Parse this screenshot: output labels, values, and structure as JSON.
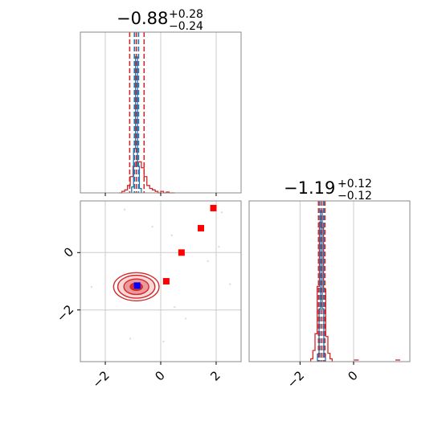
{
  "chart_data": [
    {
      "type": "histogram",
      "panel": "top-left",
      "title_value": "−0.88",
      "title_upper": "+0.28",
      "title_lower": "−0.24",
      "xlim": [
        -2.9,
        2.9
      ],
      "median": -0.88,
      "quantiles_red": [
        -1.12,
        -0.88,
        -0.6
      ],
      "quantiles_blue": [
        -0.95,
        -0.88,
        -0.8
      ],
      "grid": true,
      "colors": {
        "red": "#d62728",
        "blue": "#1f77b4",
        "grid": "#cccccc"
      },
      "hist_blue": {
        "bin_edges": [
          -1.05,
          -0.98,
          -0.91,
          -0.84,
          -0.77,
          -0.7
        ],
        "counts": [
          0.04,
          0.3,
          0.92,
          0.18,
          0.03
        ]
      },
      "hist_red": {
        "bin_edges": [
          -1.5,
          -1.4,
          -1.3,
          -1.2,
          -1.1,
          -1.0,
          -0.9,
          -0.8,
          -0.7,
          -0.6,
          -0.5,
          -0.4,
          -0.3,
          -0.2,
          -0.1,
          0.0,
          0.1,
          0.2,
          0.3,
          0.4,
          0.5
        ],
        "counts": [
          0.0,
          0.01,
          0.02,
          0.05,
          0.11,
          0.18,
          0.21,
          0.21,
          0.17,
          0.11,
          0.05,
          0.03,
          0.02,
          0.01,
          0.0,
          0.01,
          0.0,
          0.005,
          0.0,
          0.0
        ]
      }
    },
    {
      "type": "contour",
      "panel": "bottom-left",
      "xlim": [
        -2.9,
        2.9
      ],
      "ylim": [
        -3.8,
        1.8
      ],
      "x_ticks": [
        "−2",
        "0",
        "2"
      ],
      "y_ticks": [
        "−2",
        "0"
      ],
      "grid": true,
      "contour_center": [
        -0.88,
        -1.19
      ],
      "contour_levels": [
        {
          "rx": 0.22,
          "ry": 0.13,
          "fill": "#d62728",
          "opacity": 0.9
        },
        {
          "rx": 0.45,
          "ry": 0.27,
          "fill": "#e78b8c",
          "opacity": 0.8
        },
        {
          "rx": 0.67,
          "ry": 0.4,
          "fill": "#f4c9c9",
          "opacity": 0.75
        },
        {
          "rx": 0.82,
          "ry": 0.49,
          "fill": "none",
          "opacity": 1
        }
      ],
      "red_points": [
        {
          "x": 0.2,
          "y": -1.0
        },
        {
          "x": 0.75,
          "y": 0.0
        },
        {
          "x": 1.45,
          "y": 0.85
        },
        {
          "x": 1.9,
          "y": 1.55
        }
      ],
      "blue_point": {
        "x": -0.85,
        "y": -1.15
      },
      "faint_points": [
        {
          "x": -1.3,
          "y": 1.5
        },
        {
          "x": 2.2,
          "y": 1.4
        },
        {
          "x": 0.4,
          "y": 0.6
        },
        {
          "x": -2.5,
          "y": -1.2
        },
        {
          "x": 2.5,
          "y": -1.1
        },
        {
          "x": 0.9,
          "y": -2.3
        },
        {
          "x": 0.1,
          "y": -3.1
        },
        {
          "x": -1.1,
          "y": -3.0
        },
        {
          "x": 1.7,
          "y": -0.3
        },
        {
          "x": -0.3,
          "y": 0.9
        },
        {
          "x": 0.5,
          "y": -1.9
        },
        {
          "x": 2.1,
          "y": 0.2
        }
      ]
    },
    {
      "type": "histogram",
      "panel": "bottom-right",
      "title_value": "−1.19",
      "title_upper": "+0.12",
      "title_lower": "−0.12",
      "xlim": [
        -3.9,
        2.1
      ],
      "x_ticks": [
        "−2",
        "0"
      ],
      "median": -1.19,
      "quantiles_red": [
        -1.31,
        -1.19,
        -1.07
      ],
      "quantiles_blue": [
        -1.26,
        -1.19,
        -1.12
      ],
      "grid": true,
      "hist_blue": {
        "bin_edges": [
          -1.35,
          -1.29,
          -1.23,
          -1.17,
          -1.11,
          -1.05
        ],
        "counts": [
          0.05,
          0.35,
          1.0,
          0.35,
          0.05
        ]
      },
      "hist_red": {
        "bin_edges": [
          -1.6,
          -1.52,
          -1.44,
          -1.36,
          -1.28,
          -1.2,
          -1.12,
          -1.04,
          -0.96,
          -0.88,
          -0.8
        ],
        "counts": [
          0.01,
          0.04,
          0.1,
          0.27,
          0.5,
          0.48,
          0.26,
          0.09,
          0.03,
          0.01
        ]
      },
      "outliers": [
        {
          "x": 0.1,
          "h": 0.01
        },
        {
          "x": 1.65,
          "h": 0.01
        }
      ]
    }
  ]
}
